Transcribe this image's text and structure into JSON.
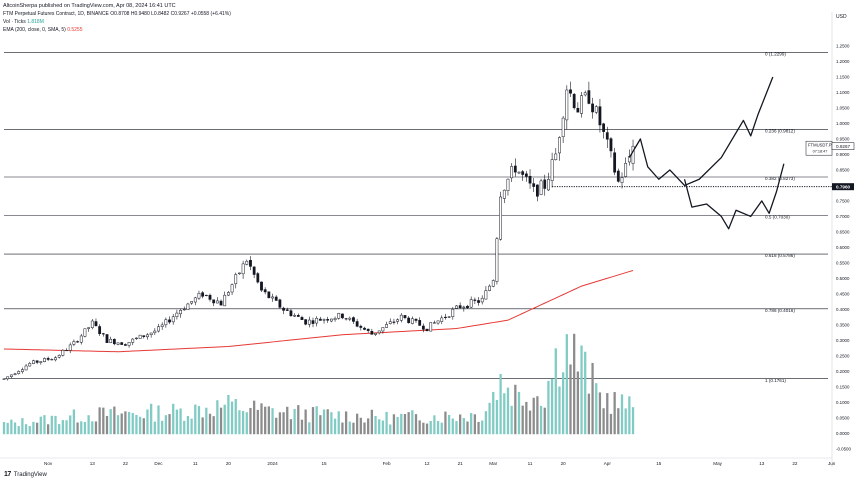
{
  "header": {
    "published": "AltcoinSherpa published on TradingView.com, Apr 08, 2024 16:41 UTC",
    "symbol_line": "FTM Perpetual Futures Contract, 1D, BINANCE O0.8708 H0.9480 L0.8482 C0.9267 +0.0558 (+6.41%)",
    "vol_label": "Vol · Ticks",
    "vol_value": "1.818M",
    "ema_label": "EMA (200, close, 0, SMA, 5)",
    "ema_value": "0.5255"
  },
  "footer": {
    "logo": "17",
    "brand": "TradingView"
  },
  "colors": {
    "up_body": "#ffffff",
    "down_body": "#131722",
    "wick": "#131722",
    "vol_up": "#80cbc4",
    "vol_down": "#8c8c8c",
    "ema": "#e53935",
    "fib_line": "#131722",
    "projection": "#131722"
  },
  "chart_data": {
    "type": "candlestick",
    "y_axis": {
      "currency": "USD",
      "range": [
        -0.08,
        1.36
      ],
      "ticks": [
        "1.2500",
        "1.2000",
        "1.1500",
        "1.1000",
        "1.0500",
        "1.0000",
        "0.9500",
        "0.9000",
        "0.8500",
        "0.8000",
        "0.7500",
        "0.7000",
        "0.6500",
        "0.6000",
        "0.5500",
        "0.5000",
        "0.4500",
        "0.4000",
        "0.3500",
        "0.3000",
        "0.2500",
        "0.2000",
        "0.1500",
        "0.1000",
        "0.0500",
        "0.0000",
        "-0.0500"
      ]
    },
    "x_axis": {
      "range": [
        "2023-10-20",
        "2024-05-31"
      ],
      "ticks": [
        {
          "date": "2023-11-01",
          "label": "Nov"
        },
        {
          "date": "2023-11-13",
          "label": "13"
        },
        {
          "date": "2023-11-22",
          "label": "22"
        },
        {
          "date": "2023-12-01",
          "label": "Dec"
        },
        {
          "date": "2023-12-11",
          "label": "11"
        },
        {
          "date": "2023-12-20",
          "label": "20"
        },
        {
          "date": "2024-01-01",
          "label": "2024"
        },
        {
          "date": "2024-01-15",
          "label": "15"
        },
        {
          "date": "2024-02-01",
          "label": "Feb"
        },
        {
          "date": "2024-02-12",
          "label": "12"
        },
        {
          "date": "2024-02-21",
          "label": "21"
        },
        {
          "date": "2024-03-01",
          "label": "Mar"
        },
        {
          "date": "2024-03-11",
          "label": "11"
        },
        {
          "date": "2024-03-20",
          "label": "20"
        },
        {
          "date": "2024-04-01",
          "label": "Apr"
        },
        {
          "date": "2024-04-15",
          "label": "15"
        },
        {
          "date": "2024-05-01",
          "label": "May"
        },
        {
          "date": "2024-05-13",
          "label": "13"
        },
        {
          "date": "2024-05-22",
          "label": "22"
        },
        {
          "date": "2024-06-01",
          "label": "Jun"
        }
      ]
    },
    "start_date": "2023-10-20",
    "ohlc_waypoints": [
      [
        "2023-10-20",
        0.175
      ],
      [
        "2023-10-27",
        0.225
      ],
      [
        "2023-11-03",
        0.245
      ],
      [
        "2023-11-08",
        0.29
      ],
      [
        "2023-11-13",
        0.355
      ],
      [
        "2023-11-17",
        0.3
      ],
      [
        "2023-11-22",
        0.29
      ],
      [
        "2023-12-01",
        0.335
      ],
      [
        "2023-12-07",
        0.4
      ],
      [
        "2023-12-13",
        0.45
      ],
      [
        "2023-12-18",
        0.42
      ],
      [
        "2023-12-25",
        0.56
      ],
      [
        "2023-12-29",
        0.46
      ],
      [
        "2024-01-04",
        0.4
      ],
      [
        "2024-01-10",
        0.36
      ],
      [
        "2024-01-20",
        0.38
      ],
      [
        "2024-01-28",
        0.32
      ],
      [
        "2024-02-05",
        0.375
      ],
      [
        "2024-02-12",
        0.34
      ],
      [
        "2024-02-21",
        0.41
      ],
      [
        "2024-02-27",
        0.43
      ],
      [
        "2024-03-01",
        0.5
      ],
      [
        "2024-03-03",
        0.78
      ],
      [
        "2024-03-07",
        0.86
      ],
      [
        "2024-03-12",
        0.78
      ],
      [
        "2024-03-15",
        0.8
      ],
      [
        "2024-03-18",
        0.9
      ],
      [
        "2024-03-21",
        1.12
      ],
      [
        "2024-03-24",
        1.05
      ],
      [
        "2024-03-27",
        1.09
      ],
      [
        "2024-03-30",
        1.0
      ],
      [
        "2024-04-02",
        0.89
      ],
      [
        "2024-04-04",
        0.81
      ],
      [
        "2024-04-06",
        0.86
      ],
      [
        "2024-04-08",
        0.927
      ]
    ],
    "ema": {
      "label": "EMA (200, close, 0, SMA, 5)",
      "points": [
        [
          "2023-10-20",
          0.272
        ],
        [
          "2023-11-20",
          0.263
        ],
        [
          "2023-12-20",
          0.28
        ],
        [
          "2024-01-20",
          0.318
        ],
        [
          "2024-02-20",
          0.338
        ],
        [
          "2024-03-05",
          0.365
        ],
        [
          "2024-03-15",
          0.42
        ],
        [
          "2024-03-25",
          0.475
        ],
        [
          "2024-04-08",
          0.5255
        ]
      ]
    },
    "volume_waypoints": [
      [
        "2023-10-20",
        0.03
      ],
      [
        "2023-11-13",
        0.06
      ],
      [
        "2023-12-07",
        0.07
      ],
      [
        "2023-12-20",
        0.09
      ],
      [
        "2024-01-01",
        0.07
      ],
      [
        "2024-02-01",
        0.05
      ],
      [
        "2024-02-27",
        0.06
      ],
      [
        "2024-03-03",
        0.17
      ],
      [
        "2024-03-08",
        0.12
      ],
      [
        "2024-03-15",
        0.13
      ],
      [
        "2024-03-20",
        0.3
      ],
      [
        "2024-03-25",
        0.22
      ],
      [
        "2024-03-30",
        0.12
      ],
      [
        "2024-04-08",
        0.08
      ]
    ],
    "fib_levels": [
      {
        "label": "0 (1.2299)",
        "value": 1.2299
      },
      {
        "label": "0.236 (0.9812)",
        "value": 0.9812
      },
      {
        "label": "0.382 (0.8273)",
        "value": 0.8273
      },
      {
        "label": "0.5 (0.7030)",
        "value": 0.703
      },
      {
        "label": "0.618 (0.5786)",
        "value": 0.5786
      },
      {
        "label": "0.786 (0.4016)",
        "value": 0.4016
      },
      {
        "label": "1 (0.1761)",
        "value": 0.1761
      }
    ],
    "horizontal_dotted": {
      "value": 0.796,
      "label": "0.7960"
    },
    "last_price": {
      "value": 0.9267,
      "label": "0.9267",
      "symbol": "FTMUSDT.P",
      "countdown": "07:18:47"
    },
    "projection_upper": [
      [
        "2024-04-07",
        0.89
      ],
      [
        "2024-04-10",
        0.95
      ],
      [
        "2024-04-12",
        0.86
      ],
      [
        "2024-04-15",
        0.82
      ],
      [
        "2024-04-18",
        0.85
      ],
      [
        "2024-04-22",
        0.8
      ],
      [
        "2024-04-26",
        0.82
      ],
      [
        "2024-05-02",
        0.89
      ],
      [
        "2024-05-08",
        1.01
      ],
      [
        "2024-05-10",
        0.96
      ],
      [
        "2024-05-12",
        1.03
      ],
      [
        "2024-05-16",
        1.15
      ]
    ],
    "projection_lower": [
      [
        "2024-04-22",
        0.82
      ],
      [
        "2024-04-24",
        0.73
      ],
      [
        "2024-04-28",
        0.74
      ],
      [
        "2024-05-02",
        0.7
      ],
      [
        "2024-05-04",
        0.66
      ],
      [
        "2024-05-06",
        0.72
      ],
      [
        "2024-05-10",
        0.7
      ],
      [
        "2024-05-13",
        0.75
      ],
      [
        "2024-05-15",
        0.71
      ],
      [
        "2024-05-17",
        0.78
      ],
      [
        "2024-05-19",
        0.87
      ]
    ]
  }
}
